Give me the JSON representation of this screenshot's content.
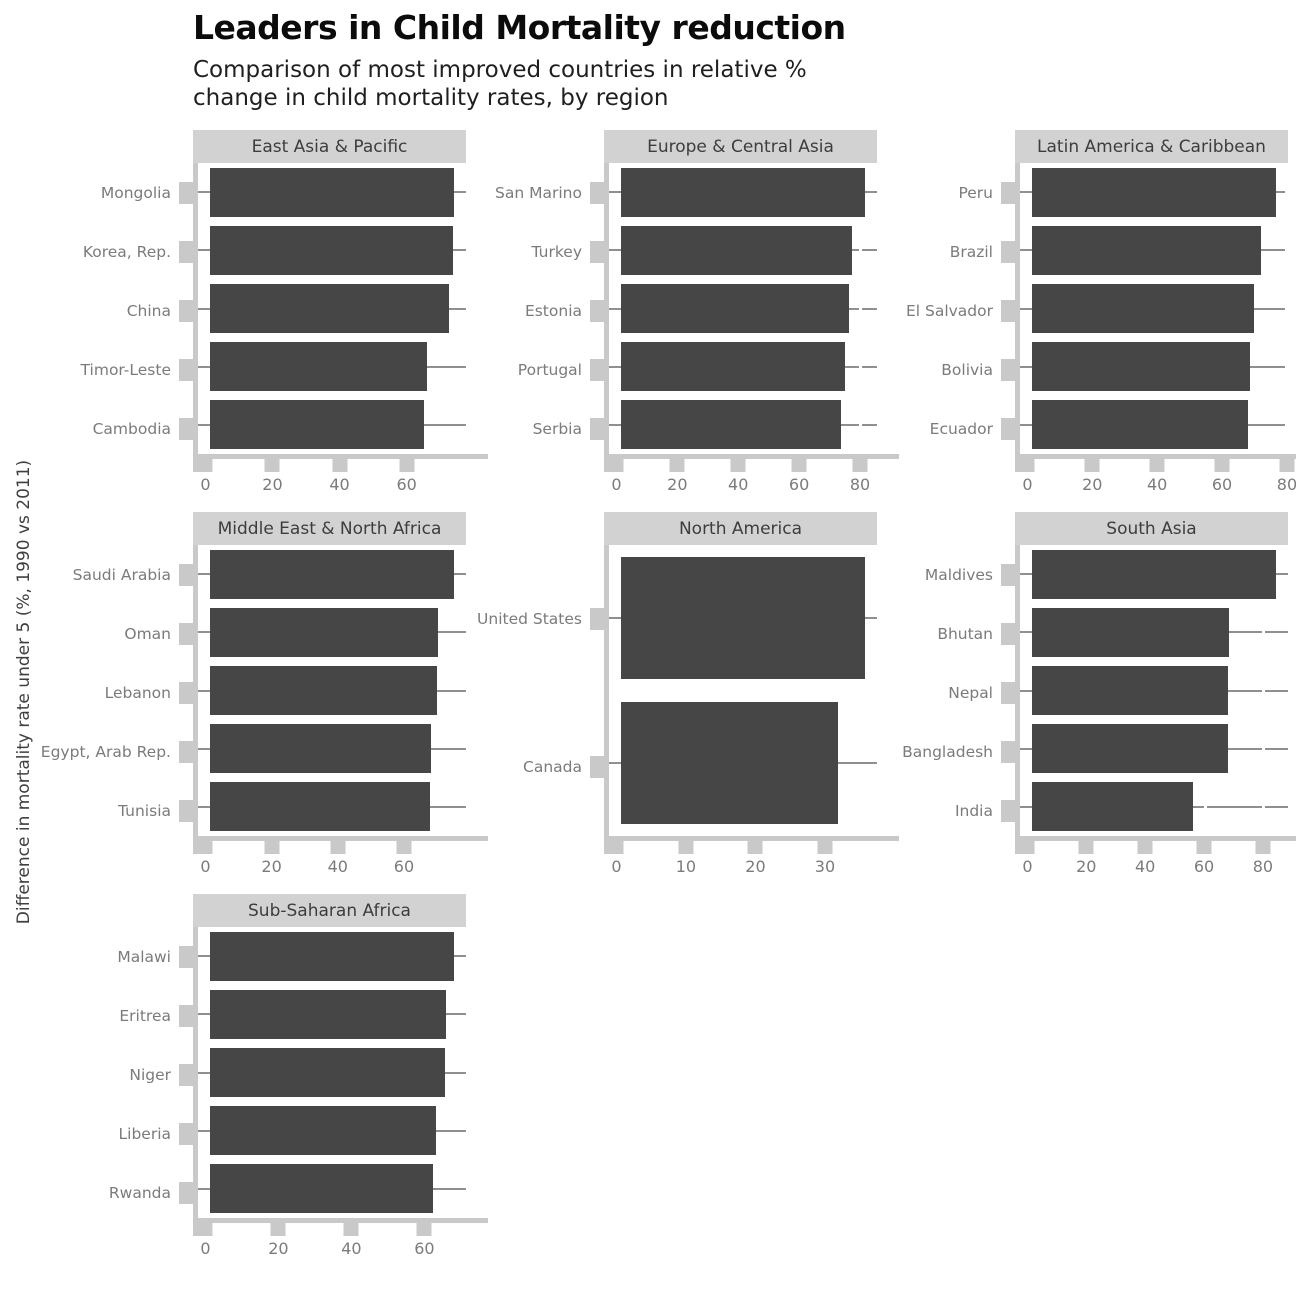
{
  "header": {
    "title": "Leaders in Child Mortality reduction",
    "subtitle_lines": [
      "Comparison of most improved countries in relative %",
      "change in child mortality rates, by region"
    ]
  },
  "colors": {
    "bar": "#464646",
    "strip_background": "#d2d2d2",
    "axis_and_ticks": "#c9c9c9",
    "gridline": "#8f8f8f",
    "axis_text": "#7b7b7b",
    "strip_text": "#3d3d3d",
    "title": "#0b0b0b",
    "subtitle": "#1f1f1f",
    "background": "#ffffff"
  },
  "chart_data": {
    "type": "bar",
    "orientation": "horizontal",
    "title": "Leaders in Child Mortality reduction",
    "subtitle": "Comparison of most improved countries in relative % change in child mortality rates, by region",
    "ylabel": "Difference in mortality rate under 5 (%, 1990 vs 2011)",
    "xlabel": "",
    "legend": "none",
    "grid": "horizontal category lines only, white break lines at major x ticks",
    "facets": [
      {
        "region": "East Asia & Pacific",
        "categories": [
          "Mongolia",
          "Korea, Rep.",
          "China",
          "Timor-Leste",
          "Cambodia"
        ],
        "values": [
          74.0,
          73.7,
          72.6,
          66.0,
          64.8
        ],
        "xticks": [
          0,
          20,
          40,
          60
        ],
        "xlim": [
          0,
          78
        ]
      },
      {
        "region": "Europe & Central Asia",
        "categories": [
          "San Marino",
          "Turkey",
          "Estonia",
          "Portugal",
          "Serbia"
        ],
        "values": [
          81.5,
          77.3,
          76.2,
          74.8,
          73.4
        ],
        "xticks": [
          0,
          20,
          40,
          60,
          80
        ],
        "xlim": [
          0,
          86
        ]
      },
      {
        "region": "Latin America & Caribbean",
        "categories": [
          "Peru",
          "Brazil",
          "El Salvador",
          "Bolivia",
          "Ecuador"
        ],
        "values": [
          76.5,
          71.9,
          69.5,
          68.3,
          67.8
        ],
        "xticks": [
          0,
          20,
          40,
          60,
          80
        ],
        "xlim": [
          0,
          81
        ]
      },
      {
        "region": "Middle East & North Africa",
        "categories": [
          "Saudi Arabia",
          "Oman",
          "Lebanon",
          "Egypt, Arab Rep.",
          "Tunisia"
        ],
        "values": [
          75.0,
          70.1,
          69.8,
          68.1,
          67.8
        ],
        "xticks": [
          0,
          20,
          40,
          60
        ],
        "xlim": [
          0,
          79
        ]
      },
      {
        "region": "North America",
        "categories": [
          "United States",
          "Canada"
        ],
        "values": [
          35.7,
          31.7
        ],
        "xticks": [
          0,
          10,
          20,
          30
        ],
        "xlim": [
          0,
          38
        ]
      },
      {
        "region": "South Asia",
        "categories": [
          "Maldives",
          "Bhutan",
          "Nepal",
          "Bangladesh",
          "India"
        ],
        "values": [
          84.3,
          68.2,
          67.9,
          67.7,
          55.8
        ],
        "xticks": [
          0,
          20,
          40,
          60,
          80
        ],
        "xlim": [
          0,
          89
        ]
      },
      {
        "region": "Sub-Saharan Africa",
        "categories": [
          "Malawi",
          "Eritrea",
          "Niger",
          "Liberia",
          "Rwanda"
        ],
        "values": [
          68.0,
          65.8,
          65.6,
          63.0,
          62.1
        ],
        "xticks": [
          0,
          20,
          40,
          60
        ],
        "xlim": [
          0,
          72
        ]
      }
    ]
  }
}
